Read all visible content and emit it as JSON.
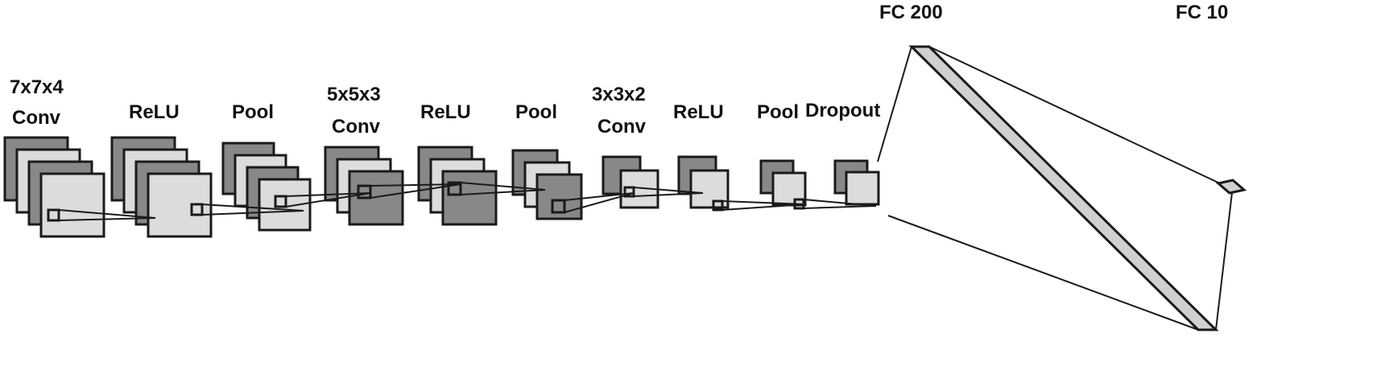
{
  "labels": {
    "conv1_a": "7x7x4",
    "conv1_b": "Conv",
    "relu1": "ReLU",
    "pool1": "Pool",
    "conv2_a": "5x5x3",
    "conv2_b": "Conv",
    "relu2": "ReLU",
    "pool2": "Pool",
    "conv3_a": "3x3x2",
    "conv3_b": "Conv",
    "relu3": "ReLU",
    "pool3": "Pool",
    "dropout": "Dropout",
    "fc200": "FC 200",
    "fc10": "FC 10"
  },
  "colors": {
    "dark": "#888888",
    "light": "#dcdcdc",
    "stroke": "#1a1a1a",
    "fc_fill": "#d0d0d0"
  }
}
